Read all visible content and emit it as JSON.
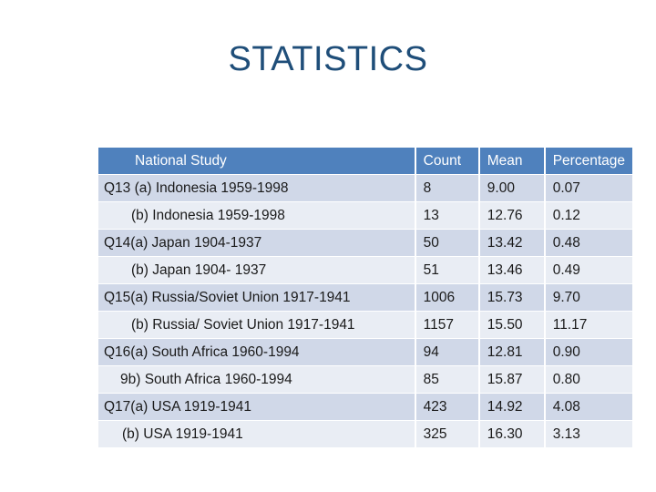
{
  "title": "STATISTICS",
  "table": {
    "headers": [
      "National Study",
      "Count",
      "Mean",
      "Percentage"
    ],
    "rows": [
      {
        "study": "Q13 (a) Indonesia  1959-1998",
        "indent": 0,
        "count": "8",
        "mean": "9.00",
        "pct": "0.07"
      },
      {
        "study": "(b) Indonesia  1959-1998",
        "indent": 1,
        "count": "13",
        "mean": "12.76",
        "pct": "0.12"
      },
      {
        "study": "Q14(a) Japan 1904-1937",
        "indent": 0,
        "count": "50",
        "mean": "13.42",
        "pct": "0.48"
      },
      {
        "study": "(b) Japan 1904- 1937",
        "indent": 1,
        "count": "51",
        "mean": "13.46",
        "pct": "0.49"
      },
      {
        "study": "Q15(a) Russia/Soviet Union 1917-1941",
        "indent": 0,
        "count": "1006",
        "mean": "15.73",
        "pct": "9.70"
      },
      {
        "study": "(b) Russia/ Soviet Union 1917-1941",
        "indent": 1,
        "count": "1157",
        "mean": "15.50",
        "pct": "11.17"
      },
      {
        "study": "Q16(a) South Africa 1960-1994",
        "indent": 0,
        "count": "94",
        "mean": "12.81",
        "pct": "0.90"
      },
      {
        "study": "9b) South Africa 1960-1994",
        "indent": 2,
        "count": "85",
        "mean": "15.87",
        "pct": "0.80"
      },
      {
        "study": "Q17(a) USA 1919-1941",
        "indent": 0,
        "count": "423",
        "mean": "14.92",
        "pct": "4.08"
      },
      {
        "study": "(b) USA 1919-1941",
        "indent": 3,
        "count": "325",
        "mean": "16.30",
        "pct": "3.13"
      }
    ]
  }
}
